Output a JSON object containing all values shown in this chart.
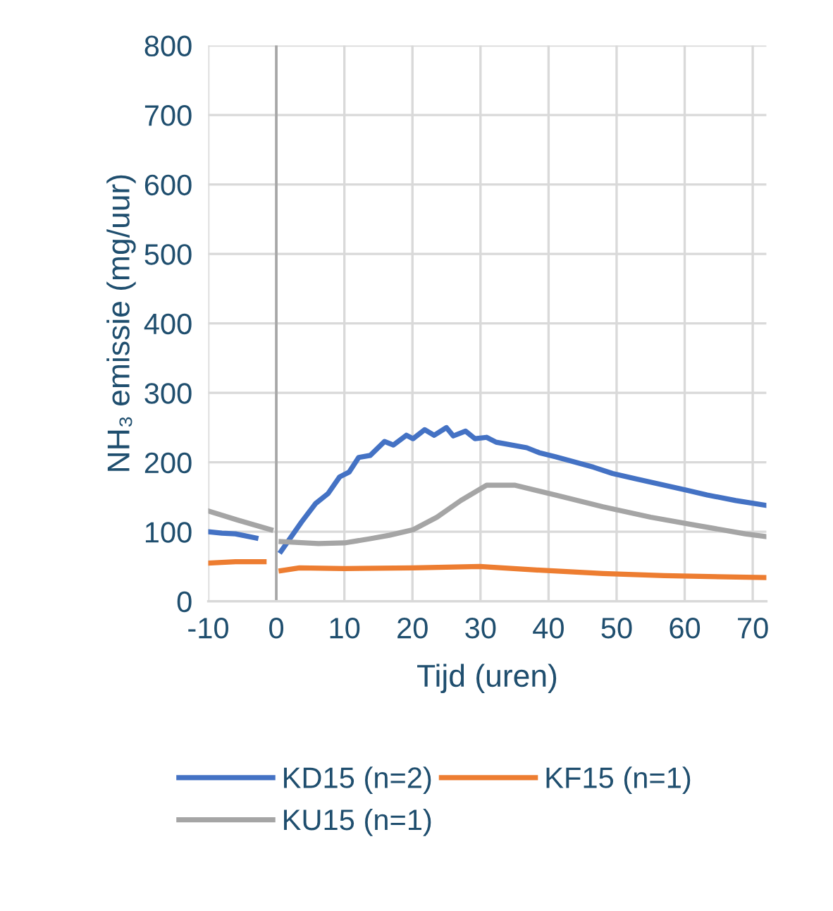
{
  "chart_data": {
    "type": "line",
    "xlabel": "Tijd (uren)",
    "ylabel": "NH₃ emissie (mg/uur)",
    "xlim": [
      -10,
      72
    ],
    "xticks": [
      -10,
      0,
      10,
      20,
      30,
      40,
      50,
      60,
      70
    ],
    "ylim": [
      0,
      800
    ],
    "yticks": [
      0,
      100,
      200,
      300,
      400,
      500,
      600,
      700,
      800
    ],
    "grid": true,
    "legend": "bottom",
    "line_style": "solid",
    "marker": "none",
    "ref_lines": [
      {
        "axis": "x",
        "value": 0,
        "color": "#a6a6a6"
      }
    ],
    "series": [
      {
        "name": "KD15 (n=2)",
        "color": "#4472c4",
        "x": [
          -10,
          -8,
          -6,
          -3,
          -1,
          0.7,
          3.7,
          5.8,
          7.6,
          9.3,
          10.7,
          12.1,
          13.8,
          15.9,
          17.2,
          19.1,
          20.1,
          21.8,
          23.2,
          25,
          26,
          27.8,
          29.2,
          30.9,
          32.3,
          36.8,
          38.6,
          41,
          46.6,
          49.4,
          52.9,
          60.2,
          63.3,
          67.5,
          72
        ],
        "values": [
          100,
          98,
          97,
          91,
          null,
          72,
          114,
          141,
          155,
          179,
          186,
          207,
          210,
          230,
          225,
          239,
          234,
          247,
          239,
          250,
          238,
          245,
          234,
          236,
          229,
          221,
          214,
          208,
          193,
          184,
          176,
          160,
          153,
          145,
          138
        ]
      },
      {
        "name": "KF15 (n=1)",
        "color": "#ed7d31",
        "x": [
          -10,
          -6,
          -1.8,
          -0.5,
          0.7,
          3.4,
          10,
          20.1,
          29.9,
          38.2,
          48,
          57,
          72
        ],
        "values": [
          55,
          57,
          57,
          null,
          44,
          48,
          47,
          48,
          50,
          45,
          40,
          37,
          34
        ]
      },
      {
        "name": "KU15 (n=1)",
        "color": "#a5a5a5",
        "x": [
          -10,
          -5.7,
          -0.8,
          0,
          0.7,
          6.2,
          10,
          13.8,
          16.6,
          20.1,
          23.6,
          27.1,
          30.9,
          35.1,
          41,
          48,
          55,
          61.9,
          68.9,
          72
        ],
        "values": [
          130,
          117,
          103,
          null,
          86,
          83,
          84,
          90,
          95,
          103,
          121,
          145,
          167,
          167,
          153,
          136,
          121,
          109,
          97,
          93
        ]
      }
    ]
  }
}
